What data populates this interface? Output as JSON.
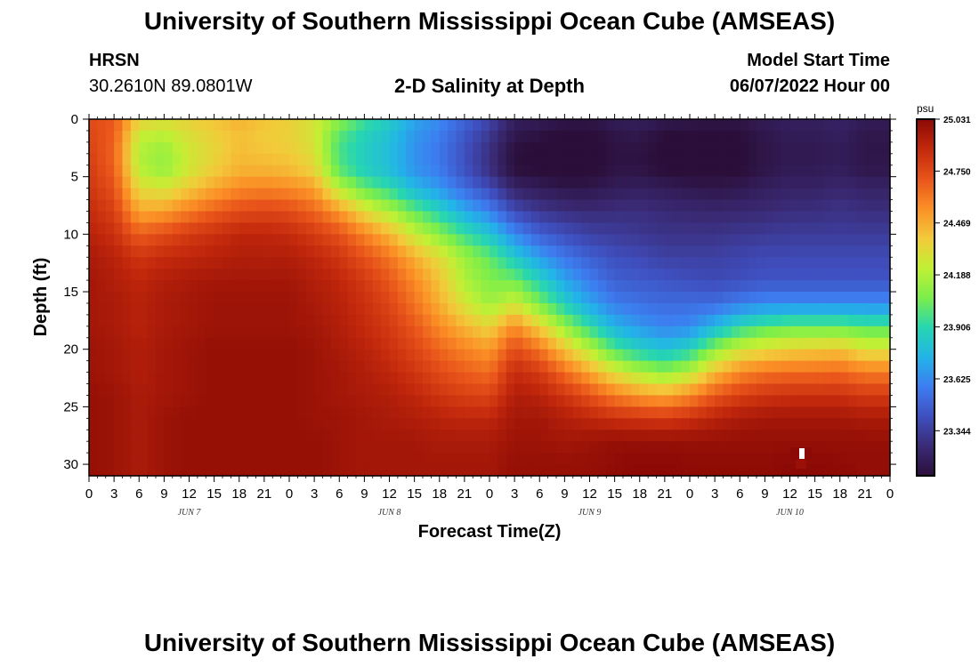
{
  "title": "University of Southern Mississippi Ocean Cube (AMSEAS)",
  "title_repeat": "University of Southern Mississippi Ocean Cube (AMSEAS)",
  "station": "HRSN",
  "coordinates": "30.2610N  89.0801W",
  "subtitle": "2-D Salinity at Depth",
  "model_start_label": "Model Start Time",
  "model_start_value": "06/07/2022 Hour 00",
  "chart_data": {
    "type": "heatmap",
    "title": "2-D Salinity at Depth",
    "xlabel": "Forecast Time(Z)",
    "ylabel": "Depth (ft)",
    "x_unit": "hours from model start",
    "xlim": [
      0,
      96
    ],
    "ylim": [
      0,
      31
    ],
    "y_inverted": true,
    "x_ticks": [
      0,
      3,
      6,
      9,
      12,
      15,
      18,
      21,
      24,
      27,
      30,
      33,
      36,
      39,
      42,
      45,
      48,
      51,
      54,
      57,
      60,
      63,
      66,
      69,
      72,
      75,
      78,
      81,
      84,
      87,
      90,
      93,
      96
    ],
    "x_tick_labels": [
      "0",
      "3",
      "6",
      "9",
      "12",
      "15",
      "18",
      "21",
      "0",
      "3",
      "6",
      "9",
      "12",
      "15",
      "18",
      "21",
      "0",
      "3",
      "6",
      "9",
      "12",
      "15",
      "18",
      "21",
      "0",
      "3",
      "6",
      "9",
      "12",
      "15",
      "18",
      "21",
      "0"
    ],
    "y_ticks": [
      0,
      5,
      10,
      15,
      20,
      25,
      30
    ],
    "y_tick_labels": [
      "0",
      "5",
      "10",
      "15",
      "20",
      "25",
      "30"
    ],
    "date_labels": [
      {
        "label": "JUN 7",
        "hour": 12
      },
      {
        "label": "JUN 8",
        "hour": 36
      },
      {
        "label": "JUN 9",
        "hour": 60
      },
      {
        "label": "JUN 10",
        "hour": 84
      }
    ],
    "colorbar": {
      "unit": "psu",
      "min": 23.1,
      "max": 25.031,
      "tick_values": [
        25.031,
        24.75,
        24.469,
        24.188,
        23.906,
        23.625,
        23.344
      ],
      "tick_labels": [
        "25.031",
        "24.750",
        "24.469",
        "24.188",
        "23.906",
        "23.625",
        "23.344"
      ],
      "colors": [
        "#2b0f3a",
        "#3a2a75",
        "#3f4fbf",
        "#3d7df0",
        "#22b4e8",
        "#27d6b0",
        "#7cee4a",
        "#c2f034",
        "#f3c93a",
        "#fb8f26",
        "#e8531a",
        "#c2280c",
        "#8b0a05"
      ]
    },
    "depth_levels_ft": [
      0,
      1.5,
      3,
      4.5,
      6,
      8,
      10,
      12,
      14,
      16,
      18,
      20,
      22,
      24,
      26,
      28,
      30
    ],
    "time_hours": [
      0,
      3,
      6,
      9,
      12,
      15,
      18,
      21,
      24,
      27,
      30,
      33,
      36,
      39,
      42,
      45,
      48,
      51,
      54,
      57,
      60,
      63,
      66,
      69,
      72,
      75,
      78,
      81,
      84,
      87,
      90,
      93,
      96
    ],
    "salinity_psu": [
      [
        24.74,
        24.7,
        24.36,
        24.32,
        24.36,
        24.4,
        24.45,
        24.4,
        24.36,
        24.28,
        24.1,
        23.95,
        23.85,
        23.7,
        23.62,
        23.5,
        23.38,
        23.2,
        23.18,
        23.15,
        23.14,
        23.18,
        23.2,
        23.16,
        23.15,
        23.14,
        23.14,
        23.18,
        23.2,
        23.2,
        23.22,
        23.18,
        23.18
      ],
      [
        24.76,
        24.68,
        24.24,
        24.2,
        24.3,
        24.36,
        24.42,
        24.38,
        24.36,
        24.28,
        24.0,
        23.88,
        23.8,
        23.66,
        23.58,
        23.45,
        23.32,
        23.15,
        23.12,
        23.08,
        23.08,
        23.14,
        23.15,
        23.1,
        23.1,
        23.08,
        23.1,
        23.15,
        23.18,
        23.18,
        23.2,
        23.15,
        23.15
      ],
      [
        24.78,
        24.66,
        24.18,
        24.12,
        24.26,
        24.34,
        24.42,
        24.4,
        24.38,
        24.3,
        23.96,
        23.85,
        23.78,
        23.64,
        23.56,
        23.42,
        23.28,
        23.1,
        23.08,
        23.04,
        23.06,
        23.12,
        23.12,
        23.08,
        23.06,
        23.05,
        23.08,
        23.14,
        23.16,
        23.16,
        23.18,
        23.14,
        23.14
      ],
      [
        24.8,
        24.68,
        24.22,
        24.14,
        24.28,
        24.38,
        24.46,
        24.46,
        24.44,
        24.36,
        24.02,
        23.88,
        23.8,
        23.66,
        23.58,
        23.44,
        23.3,
        23.12,
        23.1,
        23.06,
        23.08,
        23.14,
        23.14,
        23.1,
        23.08,
        23.08,
        23.1,
        23.15,
        23.18,
        23.18,
        23.2,
        23.16,
        23.16
      ],
      [
        24.82,
        24.72,
        24.32,
        24.28,
        24.38,
        24.48,
        24.56,
        24.58,
        24.56,
        24.5,
        24.2,
        24.02,
        23.92,
        23.76,
        23.66,
        23.52,
        23.4,
        23.22,
        23.18,
        23.15,
        23.15,
        23.18,
        23.2,
        23.18,
        23.16,
        23.15,
        23.16,
        23.2,
        23.22,
        23.22,
        23.24,
        23.22,
        23.22
      ],
      [
        24.86,
        24.78,
        24.48,
        24.5,
        24.6,
        24.68,
        24.74,
        24.76,
        24.74,
        24.66,
        24.52,
        24.32,
        24.18,
        24.02,
        23.88,
        23.72,
        23.6,
        23.4,
        23.32,
        23.28,
        23.26,
        23.28,
        23.28,
        23.26,
        23.25,
        23.24,
        23.25,
        23.26,
        23.28,
        23.28,
        23.3,
        23.28,
        23.28
      ],
      [
        24.9,
        24.84,
        24.68,
        24.74,
        24.8,
        24.84,
        24.88,
        24.88,
        24.86,
        24.8,
        24.72,
        24.58,
        24.44,
        24.24,
        24.1,
        23.94,
        23.82,
        23.62,
        23.48,
        23.42,
        23.36,
        23.34,
        23.32,
        23.3,
        23.3,
        23.3,
        23.32,
        23.33,
        23.34,
        23.34,
        23.34,
        23.34,
        23.34
      ],
      [
        24.94,
        24.9,
        24.82,
        24.86,
        24.88,
        24.9,
        24.92,
        24.92,
        24.92,
        24.88,
        24.82,
        24.72,
        24.62,
        24.46,
        24.32,
        24.14,
        24.02,
        23.84,
        23.68,
        23.56,
        23.48,
        23.42,
        23.4,
        23.36,
        23.36,
        23.36,
        23.38,
        23.4,
        23.4,
        23.4,
        23.4,
        23.4,
        23.4
      ],
      [
        24.96,
        24.92,
        24.88,
        24.92,
        24.94,
        24.96,
        24.96,
        24.96,
        24.96,
        24.92,
        24.88,
        24.8,
        24.7,
        24.56,
        24.4,
        24.18,
        24.08,
        24.04,
        23.88,
        23.7,
        23.58,
        23.48,
        23.46,
        23.44,
        23.42,
        23.4,
        23.42,
        23.44,
        23.44,
        23.44,
        23.44,
        23.44,
        23.44
      ],
      [
        24.96,
        24.94,
        24.9,
        24.94,
        24.96,
        24.98,
        24.98,
        24.98,
        24.98,
        24.94,
        24.9,
        24.84,
        24.76,
        24.62,
        24.46,
        24.28,
        24.14,
        24.26,
        24.06,
        23.86,
        23.7,
        23.58,
        23.54,
        23.52,
        23.52,
        23.52,
        23.58,
        23.62,
        23.62,
        23.62,
        23.62,
        23.62,
        23.62
      ],
      [
        24.96,
        24.94,
        24.9,
        24.94,
        24.96,
        24.98,
        24.98,
        24.98,
        24.98,
        24.96,
        24.92,
        24.86,
        24.8,
        24.7,
        24.56,
        24.44,
        24.34,
        24.56,
        24.36,
        24.12,
        23.92,
        23.74,
        23.66,
        23.6,
        23.62,
        23.76,
        23.9,
        23.98,
        24.02,
        24.02,
        24.02,
        23.98,
        23.98
      ],
      [
        24.98,
        24.96,
        24.92,
        24.96,
        24.98,
        25.0,
        25.0,
        25.0,
        25.0,
        24.98,
        24.94,
        24.9,
        24.84,
        24.76,
        24.66,
        24.58,
        24.52,
        24.74,
        24.62,
        24.4,
        24.2,
        23.98,
        23.86,
        23.8,
        23.88,
        24.1,
        24.26,
        24.32,
        24.36,
        24.38,
        24.4,
        24.3,
        24.3
      ],
      [
        24.98,
        24.96,
        24.92,
        24.96,
        24.98,
        25.0,
        25.0,
        25.0,
        25.0,
        24.98,
        24.96,
        24.92,
        24.88,
        24.82,
        24.74,
        24.68,
        24.64,
        24.86,
        24.8,
        24.64,
        24.48,
        24.3,
        24.18,
        24.1,
        24.2,
        24.42,
        24.56,
        24.62,
        24.64,
        24.64,
        24.66,
        24.6,
        24.6
      ],
      [
        25.0,
        24.98,
        24.94,
        24.96,
        24.98,
        25.0,
        25.0,
        25.0,
        25.0,
        24.98,
        24.96,
        24.94,
        24.92,
        24.88,
        24.82,
        24.78,
        24.76,
        24.92,
        24.9,
        24.82,
        24.72,
        24.6,
        24.52,
        24.48,
        24.56,
        24.7,
        24.78,
        24.82,
        24.84,
        24.84,
        24.84,
        24.8,
        24.8
      ],
      [
        25.0,
        24.98,
        24.94,
        24.98,
        25.0,
        25.0,
        25.0,
        25.0,
        25.0,
        24.98,
        24.98,
        24.96,
        24.94,
        24.92,
        24.9,
        24.88,
        24.88,
        24.96,
        24.96,
        24.92,
        24.88,
        24.84,
        24.82,
        24.8,
        24.84,
        24.9,
        24.94,
        24.96,
        24.96,
        24.96,
        24.96,
        24.94,
        24.94
      ],
      [
        25.0,
        24.98,
        24.94,
        24.98,
        25.0,
        25.0,
        25.0,
        25.0,
        25.0,
        25.0,
        24.98,
        24.96,
        24.96,
        24.96,
        24.94,
        24.94,
        24.94,
        24.98,
        24.98,
        24.96,
        24.98,
        25.0,
        25.0,
        25.0,
        25.0,
        25.0,
        25.0,
        25.0,
        25.0,
        25.0,
        25.0,
        25.0,
        25.0
      ],
      [
        25.0,
        24.98,
        24.94,
        24.98,
        25.0,
        25.0,
        25.0,
        25.0,
        25.0,
        25.0,
        24.98,
        24.96,
        24.96,
        24.96,
        24.96,
        24.96,
        24.96,
        25.0,
        25.0,
        25.0,
        25.0,
        25.02,
        25.03,
        25.03,
        25.02,
        25.02,
        25.02,
        25.02,
        25.03,
        25.03,
        25.02,
        25.01,
        25.01
      ]
    ]
  }
}
